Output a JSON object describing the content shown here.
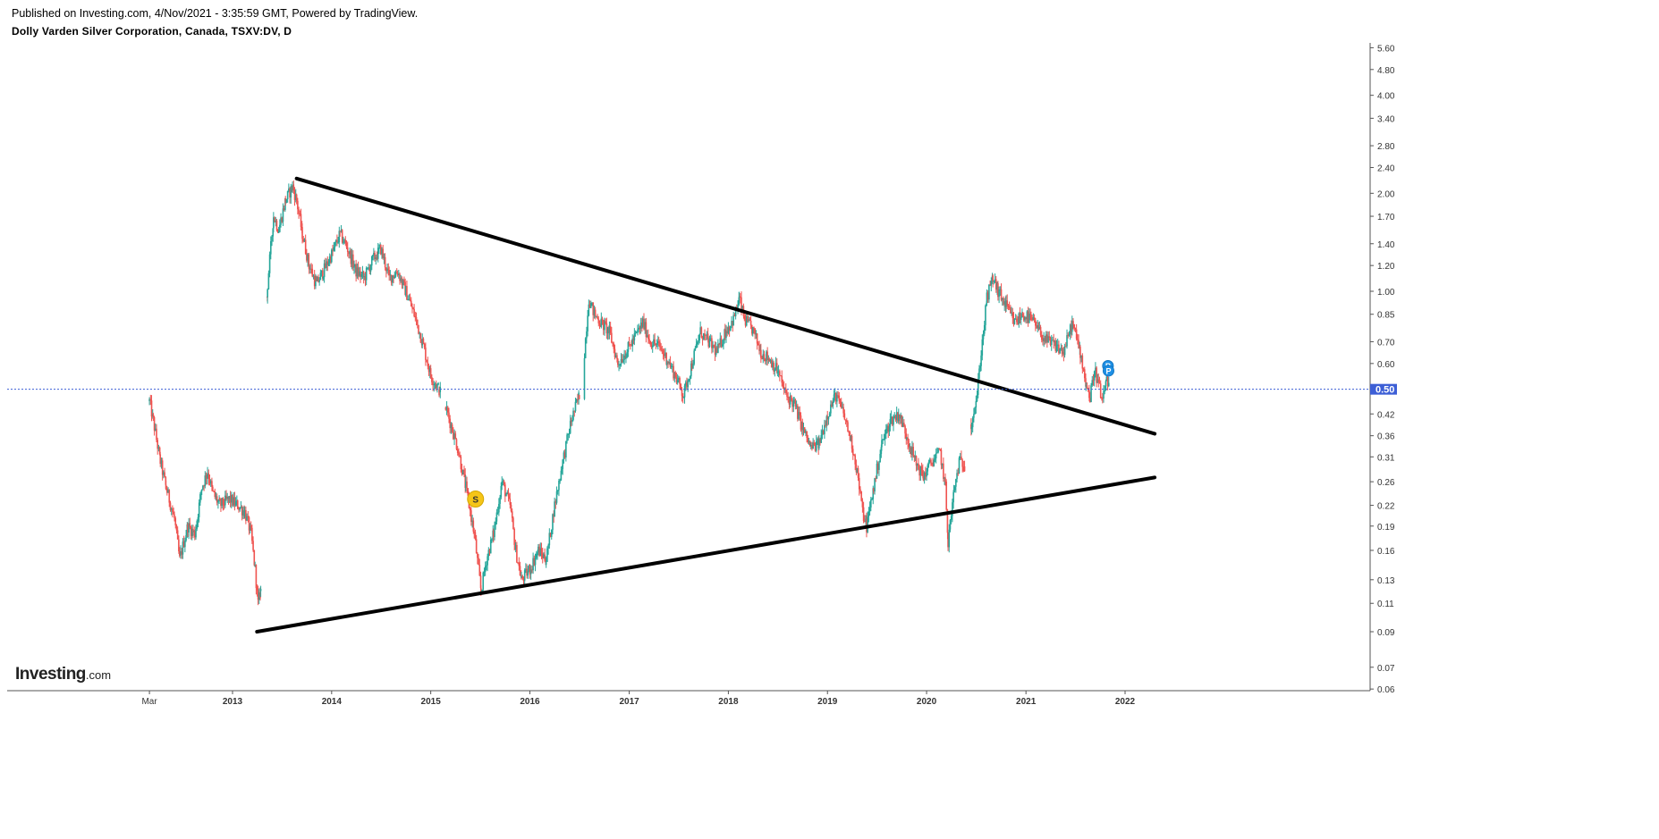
{
  "header": {
    "published": "Published on Investing.com, 4/Nov/2021 - 3:35:59 GMT, Powered by TradingView.",
    "title": "Dolly Varden Silver Corporation, Canada, TSXV:DV, D"
  },
  "logo": {
    "brand": "Investing",
    "suffix": ".com"
  },
  "colors": {
    "up": "#26a69a",
    "down": "#ef5350",
    "trendline": "#000000",
    "price_line": "#3d5fd6",
    "price_badge": "#3d5fd6",
    "dividend_marker": "#f5c518",
    "event_marker": "#1e90e6",
    "axis": "#555555"
  },
  "chart_data": {
    "type": "candlestick",
    "title": "Dolly Varden Silver Corporation, Canada, TSXV:DV, D",
    "y_scale": "log",
    "y_ticks": [
      "5.60",
      "4.80",
      "4.00",
      "3.40",
      "2.80",
      "2.40",
      "2.00",
      "1.70",
      "1.40",
      "1.20",
      "1.00",
      "0.85",
      "0.70",
      "0.60",
      "0.50",
      "0.42",
      "0.36",
      "0.31",
      "0.26",
      "0.22",
      "0.19",
      "0.16",
      "0.13",
      "0.11",
      "0.09",
      "0.07",
      "0.06"
    ],
    "x_ticks": [
      "Mar",
      "2013",
      "2014",
      "2015",
      "2016",
      "2017",
      "2018",
      "2019",
      "2020",
      "2021",
      "2022"
    ],
    "x_tick_dates": [
      "2012-03-01",
      "2013-01-01",
      "2014-01-01",
      "2015-01-01",
      "2016-01-01",
      "2017-01-01",
      "2018-01-01",
      "2019-01-01",
      "2020-01-01",
      "2021-01-01",
      "2022-01-01"
    ],
    "current_price": "0.50",
    "price_path": [
      [
        "2012-03-01",
        0.46
      ],
      [
        "2012-03-15",
        0.4
      ],
      [
        "2012-04-10",
        0.3
      ],
      [
        "2012-05-01",
        0.25
      ],
      [
        "2012-06-01",
        0.2
      ],
      [
        "2012-06-20",
        0.15
      ],
      [
        "2012-07-20",
        0.19
      ],
      [
        "2012-08-15",
        0.18
      ],
      [
        "2012-09-10",
        0.25
      ],
      [
        "2012-10-01",
        0.28
      ],
      [
        "2012-10-20",
        0.24
      ],
      [
        "2012-11-15",
        0.22
      ],
      [
        "2012-12-20",
        0.23
      ],
      [
        "2013-01-20",
        0.22
      ],
      [
        "2013-02-15",
        0.21
      ],
      [
        "2013-03-10",
        0.18
      ],
      [
        "2013-03-25",
        0.14
      ],
      [
        "2013-04-05",
        0.11
      ],
      [
        "2013-04-15",
        0.12
      ],
      [
        "2013-05-10",
        1.05
      ],
      [
        "2013-06-01",
        1.7
      ],
      [
        "2013-06-20",
        1.55
      ],
      [
        "2013-07-15",
        1.9
      ],
      [
        "2013-08-10",
        2.1
      ],
      [
        "2013-08-25",
        1.9
      ],
      [
        "2013-09-15",
        1.5
      ],
      [
        "2013-10-10",
        1.2
      ],
      [
        "2013-11-05",
        1.05
      ],
      [
        "2013-12-01",
        1.15
      ],
      [
        "2014-01-01",
        1.3
      ],
      [
        "2014-02-01",
        1.5
      ],
      [
        "2014-03-01",
        1.35
      ],
      [
        "2014-04-01",
        1.15
      ],
      [
        "2014-05-01",
        1.1
      ],
      [
        "2014-06-01",
        1.25
      ],
      [
        "2014-07-01",
        1.35
      ],
      [
        "2014-08-01",
        1.1
      ],
      [
        "2014-09-01",
        1.15
      ],
      [
        "2014-10-01",
        1.0
      ],
      [
        "2014-11-01",
        0.85
      ],
      [
        "2014-12-01",
        0.7
      ],
      [
        "2015-01-01",
        0.55
      ],
      [
        "2015-02-01",
        0.5
      ],
      [
        "2015-03-01",
        0.43
      ],
      [
        "2015-04-10",
        0.33
      ],
      [
        "2015-05-10",
        0.25
      ],
      [
        "2015-06-10",
        0.18
      ],
      [
        "2015-07-05",
        0.12
      ],
      [
        "2015-07-25",
        0.15
      ],
      [
        "2015-08-20",
        0.18
      ],
      [
        "2015-09-20",
        0.26
      ],
      [
        "2015-10-20",
        0.22
      ],
      [
        "2015-11-10",
        0.16
      ],
      [
        "2015-12-01",
        0.13
      ],
      [
        "2016-01-01",
        0.14
      ],
      [
        "2016-02-01",
        0.16
      ],
      [
        "2016-03-01",
        0.15
      ],
      [
        "2016-04-01",
        0.22
      ],
      [
        "2016-05-01",
        0.3
      ],
      [
        "2016-06-01",
        0.4
      ],
      [
        "2016-07-01",
        0.48
      ],
      [
        "2016-07-20",
        0.65
      ],
      [
        "2016-08-05",
        0.95
      ],
      [
        "2016-08-25",
        0.85
      ],
      [
        "2016-09-20",
        0.8
      ],
      [
        "2016-10-20",
        0.75
      ],
      [
        "2016-11-20",
        0.6
      ],
      [
        "2016-12-20",
        0.65
      ],
      [
        "2017-01-20",
        0.72
      ],
      [
        "2017-02-20",
        0.8
      ],
      [
        "2017-03-20",
        0.7
      ],
      [
        "2017-04-20",
        0.68
      ],
      [
        "2017-05-20",
        0.62
      ],
      [
        "2017-06-20",
        0.55
      ],
      [
        "2017-07-20",
        0.48
      ],
      [
        "2017-08-20",
        0.6
      ],
      [
        "2017-09-20",
        0.75
      ],
      [
        "2017-10-20",
        0.7
      ],
      [
        "2017-11-20",
        0.65
      ],
      [
        "2017-12-20",
        0.75
      ],
      [
        "2018-01-20",
        0.82
      ],
      [
        "2018-02-10",
        0.95
      ],
      [
        "2018-03-01",
        0.82
      ],
      [
        "2018-04-01",
        0.76
      ],
      [
        "2018-05-01",
        0.65
      ],
      [
        "2018-06-01",
        0.62
      ],
      [
        "2018-07-01",
        0.57
      ],
      [
        "2018-08-01",
        0.48
      ],
      [
        "2018-09-01",
        0.45
      ],
      [
        "2018-10-01",
        0.38
      ],
      [
        "2018-11-01",
        0.33
      ],
      [
        "2018-12-01",
        0.34
      ],
      [
        "2019-01-01",
        0.42
      ],
      [
        "2019-02-01",
        0.48
      ],
      [
        "2019-03-01",
        0.42
      ],
      [
        "2019-04-01",
        0.34
      ],
      [
        "2019-04-20",
        0.28
      ],
      [
        "2019-05-10",
        0.21
      ],
      [
        "2019-05-25",
        0.19
      ],
      [
        "2019-06-20",
        0.25
      ],
      [
        "2019-07-20",
        0.34
      ],
      [
        "2019-08-20",
        0.4
      ],
      [
        "2019-09-20",
        0.42
      ],
      [
        "2019-10-20",
        0.36
      ],
      [
        "2019-11-20",
        0.3
      ],
      [
        "2019-12-20",
        0.27
      ],
      [
        "2020-01-20",
        0.3
      ],
      [
        "2020-02-20",
        0.32
      ],
      [
        "2020-03-10",
        0.25
      ],
      [
        "2020-03-20",
        0.17
      ],
      [
        "2020-04-10",
        0.24
      ],
      [
        "2020-04-30",
        0.3
      ],
      [
        "2020-05-20",
        0.29
      ],
      [
        "2020-06-15",
        0.4
      ],
      [
        "2020-07-05",
        0.48
      ],
      [
        "2020-07-20",
        0.65
      ],
      [
        "2020-08-10",
        0.95
      ],
      [
        "2020-09-01",
        1.1
      ],
      [
        "2020-09-20",
        1.0
      ],
      [
        "2020-10-20",
        0.9
      ],
      [
        "2020-11-20",
        0.8
      ],
      [
        "2020-12-20",
        0.85
      ],
      [
        "2021-01-20",
        0.82
      ],
      [
        "2021-02-20",
        0.75
      ],
      [
        "2021-03-20",
        0.7
      ],
      [
        "2021-04-20",
        0.68
      ],
      [
        "2021-05-20",
        0.65
      ],
      [
        "2021-06-20",
        0.8
      ],
      [
        "2021-07-20",
        0.65
      ],
      [
        "2021-08-10",
        0.52
      ],
      [
        "2021-08-25",
        0.47
      ],
      [
        "2021-09-10",
        0.58
      ],
      [
        "2021-09-25",
        0.52
      ],
      [
        "2021-10-10",
        0.45
      ],
      [
        "2021-10-25",
        0.55
      ],
      [
        "2021-11-04",
        0.5
      ]
    ],
    "gaps": [
      "2013-04-20",
      "2015-02-15",
      "2016-07-10",
      "2020-06-01"
    ],
    "trendlines": [
      {
        "name": "upper",
        "from": [
          "2013-08-25",
          2.22
        ],
        "to": [
          "2022-04-20",
          0.365
        ]
      },
      {
        "name": "lower",
        "from": [
          "2013-04-01",
          0.09
        ],
        "to": [
          "2022-04-20",
          0.268
        ]
      }
    ],
    "markers": [
      {
        "type": "dividend",
        "label": "S",
        "date": "2015-06-15",
        "price": 0.23
      },
      {
        "type": "event",
        "label": "P",
        "date": "2021-10-30",
        "price": 0.59
      },
      {
        "type": "event",
        "label": "P",
        "date": "2021-11-01",
        "price": 0.57
      }
    ]
  }
}
